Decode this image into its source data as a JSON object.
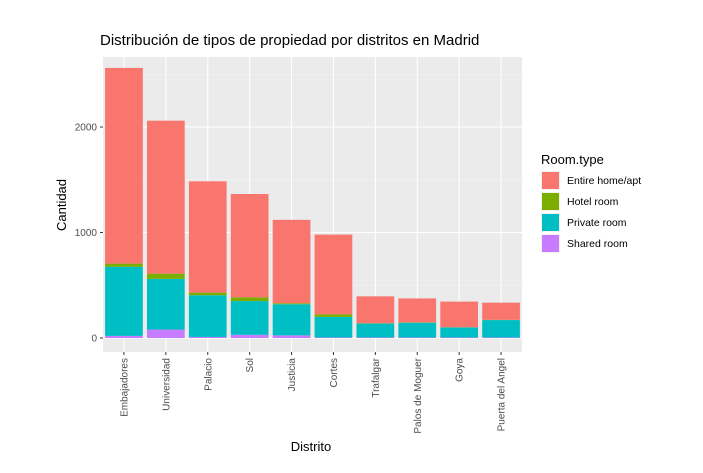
{
  "chart_data": {
    "type": "bar",
    "stacked": true,
    "title": "Distribución de tipos de propiedad por distritos en Madrid",
    "xlabel": "Distrito",
    "ylabel": "Cantidad",
    "ylim": [
      0,
      2620
    ],
    "yticks": [
      0,
      1000,
      2000
    ],
    "grid": true,
    "legend_title": "Room.type",
    "legend_position": "right",
    "categories": [
      "Embajadores",
      "Universidad",
      "Palacio",
      "Sol",
      "Justicia",
      "Cortes",
      "Trafalgar",
      "Palos de Moguer",
      "Goya",
      "Puerta del Angel"
    ],
    "series": [
      {
        "name": "Shared room",
        "color": "#C77CFF",
        "values": [
          20,
          80,
          10,
          30,
          25,
          5,
          5,
          5,
          5,
          5
        ]
      },
      {
        "name": "Private room",
        "color": "#00BFC4",
        "values": [
          655,
          480,
          395,
          320,
          295,
          195,
          132,
          140,
          95,
          165
        ]
      },
      {
        "name": "Hotel room",
        "color": "#7CAE00",
        "values": [
          30,
          50,
          25,
          35,
          10,
          25,
          3,
          3,
          2,
          2
        ]
      },
      {
        "name": "Entire home/apt",
        "color": "#F8766D",
        "values": [
          1855,
          1450,
          1055,
          980,
          790,
          755,
          255,
          227,
          243,
          163
        ]
      }
    ],
    "legend_order": [
      "Entire home/apt",
      "Hotel room",
      "Private room",
      "Shared room"
    ]
  }
}
